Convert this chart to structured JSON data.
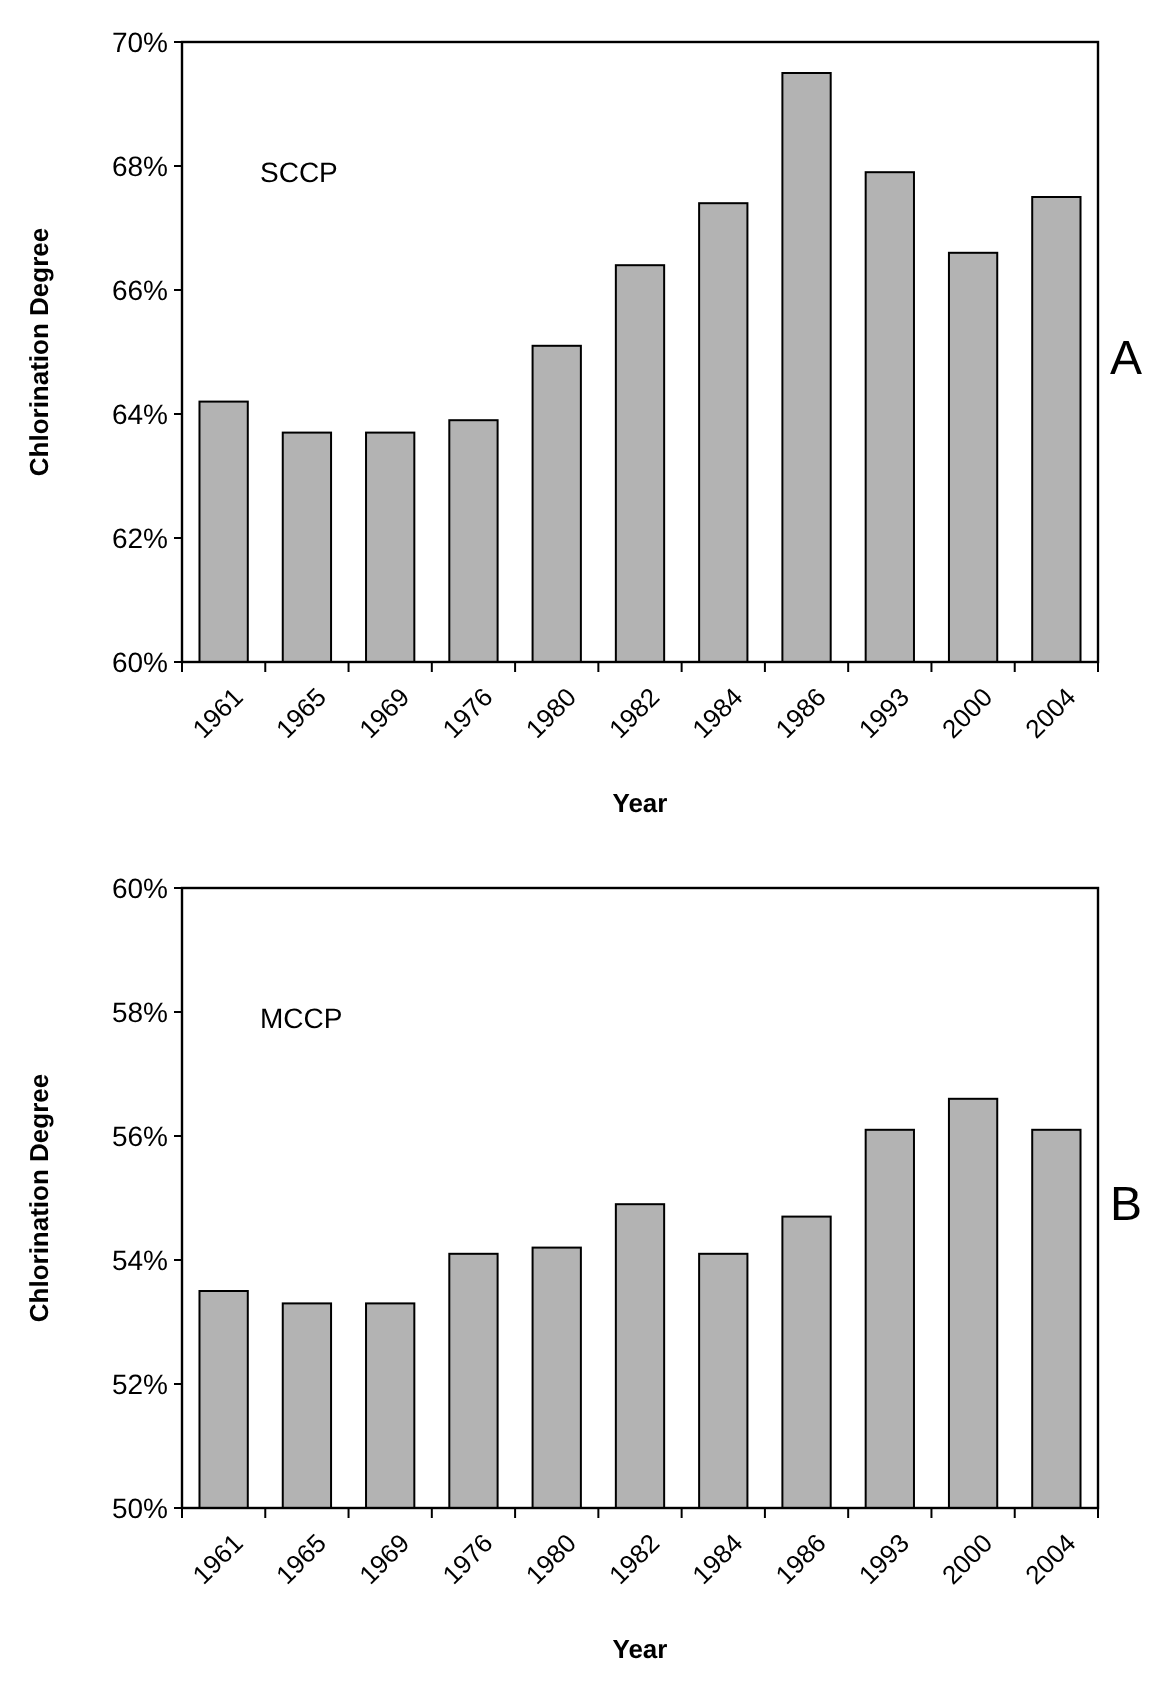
{
  "chart_data": [
    {
      "type": "bar",
      "categories": [
        "1961",
        "1965",
        "1969",
        "1976",
        "1980",
        "1982",
        "1984",
        "1986",
        "1993",
        "2000",
        "2004"
      ],
      "values": [
        64.2,
        63.7,
        63.7,
        63.9,
        65.1,
        66.4,
        67.4,
        69.5,
        67.9,
        66.6,
        67.5
      ],
      "color": "#b3b3b3",
      "xlabel": "Year",
      "ylabel": "Chlorination Degree",
      "ylim": [
        60,
        70
      ],
      "yticks": [
        {
          "value": 60,
          "label": "60%"
        },
        {
          "value": 62,
          "label": "62%"
        },
        {
          "value": 64,
          "label": "64%"
        },
        {
          "value": 66,
          "label": "66%"
        },
        {
          "value": 68,
          "label": "68%"
        },
        {
          "value": 70,
          "label": "70%"
        }
      ],
      "annotations": [
        "SCCP",
        "A"
      ]
    },
    {
      "type": "bar",
      "categories": [
        "1961",
        "1965",
        "1969",
        "1976",
        "1980",
        "1982",
        "1984",
        "1986",
        "1993",
        "2000",
        "2004"
      ],
      "values": [
        53.5,
        53.3,
        53.3,
        54.1,
        54.2,
        54.9,
        54.1,
        54.7,
        56.1,
        56.6,
        56.1
      ],
      "color": "#b3b3b3",
      "xlabel": "Year",
      "ylabel": "Chlorination Degree",
      "ylim": [
        50,
        60
      ],
      "yticks": [
        {
          "value": 50,
          "label": "50%"
        },
        {
          "value": 52,
          "label": "52%"
        },
        {
          "value": 54,
          "label": "54%"
        },
        {
          "value": 56,
          "label": "56%"
        },
        {
          "value": 58,
          "label": "58%"
        },
        {
          "value": 60,
          "label": "60%"
        }
      ],
      "annotations": [
        "MCCP",
        "B"
      ]
    }
  ]
}
